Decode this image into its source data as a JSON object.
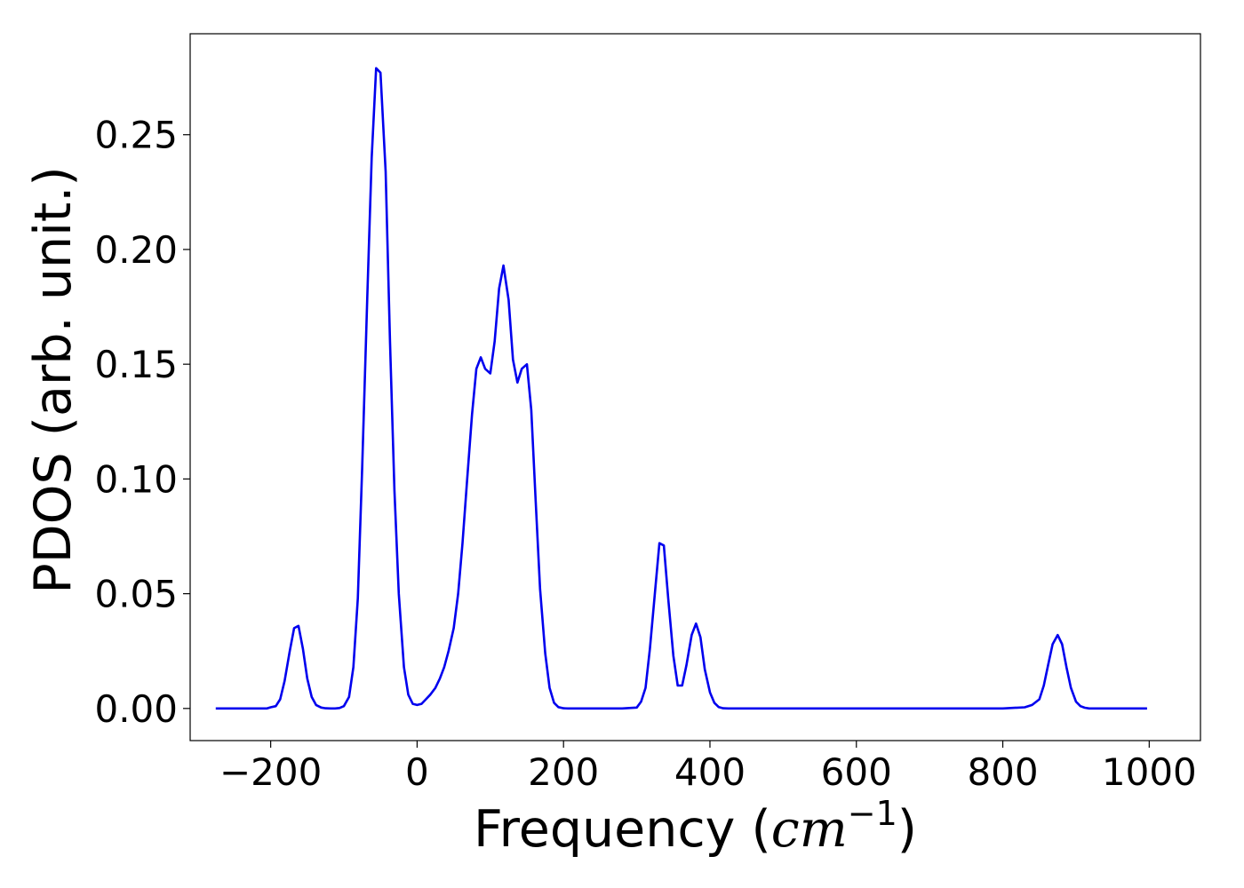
{
  "chart_data": {
    "type": "line",
    "title": "",
    "xlabel": {
      "prefix": "Frequency (",
      "var": "cm",
      "sup": "−1",
      "suffix": ")"
    },
    "ylabel": "PDOS (arb. unit.)",
    "xlim": [
      -310,
      1070
    ],
    "ylim": [
      -0.014,
      0.294
    ],
    "xticks": [
      -200,
      0,
      200,
      400,
      600,
      800,
      1000
    ],
    "xtick_labels": [
      "−200",
      "0",
      "200",
      "400",
      "600",
      "800",
      "1000"
    ],
    "yticks": [
      0.0,
      0.05,
      0.1,
      0.15,
      0.2,
      0.25
    ],
    "ytick_labels": [
      "0.00",
      "0.05",
      "0.10",
      "0.15",
      "0.20",
      "0.25"
    ],
    "grid": false,
    "series": [
      {
        "color": "#0000ee",
        "x": [
          -275,
          -260,
          -240,
          -220,
          -205,
          -200,
          -193,
          -187,
          -181,
          -174,
          -168,
          -162,
          -156,
          -150,
          -144,
          -138,
          -131,
          -125,
          -118,
          -112,
          -106,
          -100,
          -93,
          -87,
          -81,
          -75,
          -68,
          -62,
          -56,
          -50,
          -43,
          -37,
          -31,
          -25,
          -18,
          -12,
          -6,
          0,
          6,
          12,
          18,
          25,
          31,
          37,
          43,
          50,
          56,
          62,
          68,
          75,
          81,
          87,
          93,
          100,
          106,
          112,
          118,
          125,
          131,
          137,
          143,
          150,
          156,
          162,
          168,
          175,
          181,
          187,
          193,
          200,
          206,
          220,
          240,
          260,
          280,
          300,
          306,
          312,
          318,
          325,
          331,
          337,
          343,
          350,
          356,
          362,
          368,
          375,
          381,
          387,
          393,
          400,
          406,
          412,
          418,
          425,
          440,
          500,
          600,
          700,
          800,
          830,
          840,
          850,
          856,
          862,
          868,
          875,
          881,
          887,
          893,
          900,
          906,
          912,
          918,
          925,
          940,
          960,
          980,
          997
        ],
        "y": [
          0.0,
          0.0,
          0.0,
          0.0,
          0.0,
          0.0005,
          0.001,
          0.004,
          0.012,
          0.025,
          0.035,
          0.036,
          0.026,
          0.013,
          0.005,
          0.0015,
          0.0004,
          0.0001,
          0.0,
          0.0,
          0.0002,
          0.001,
          0.005,
          0.018,
          0.048,
          0.105,
          0.18,
          0.24,
          0.279,
          0.277,
          0.234,
          0.16,
          0.095,
          0.05,
          0.018,
          0.006,
          0.002,
          0.0015,
          0.002,
          0.004,
          0.006,
          0.009,
          0.013,
          0.018,
          0.025,
          0.035,
          0.05,
          0.072,
          0.098,
          0.128,
          0.148,
          0.153,
          0.148,
          0.146,
          0.16,
          0.183,
          0.193,
          0.178,
          0.152,
          0.142,
          0.148,
          0.15,
          0.13,
          0.09,
          0.052,
          0.024,
          0.009,
          0.0025,
          0.0006,
          0.0001,
          0.0,
          0.0,
          0.0,
          0.0,
          0.0,
          0.0004,
          0.003,
          0.009,
          0.026,
          0.051,
          0.072,
          0.071,
          0.048,
          0.023,
          0.01,
          0.01,
          0.019,
          0.032,
          0.037,
          0.031,
          0.017,
          0.007,
          0.0025,
          0.0006,
          0.0001,
          0.0,
          0.0,
          0.0,
          0.0,
          0.0,
          0.0,
          0.0005,
          0.0015,
          0.004,
          0.01,
          0.019,
          0.028,
          0.032,
          0.028,
          0.018,
          0.009,
          0.003,
          0.001,
          0.0003,
          0.0,
          0.0,
          0.0,
          0.0,
          0.0,
          0.0
        ]
      }
    ]
  }
}
